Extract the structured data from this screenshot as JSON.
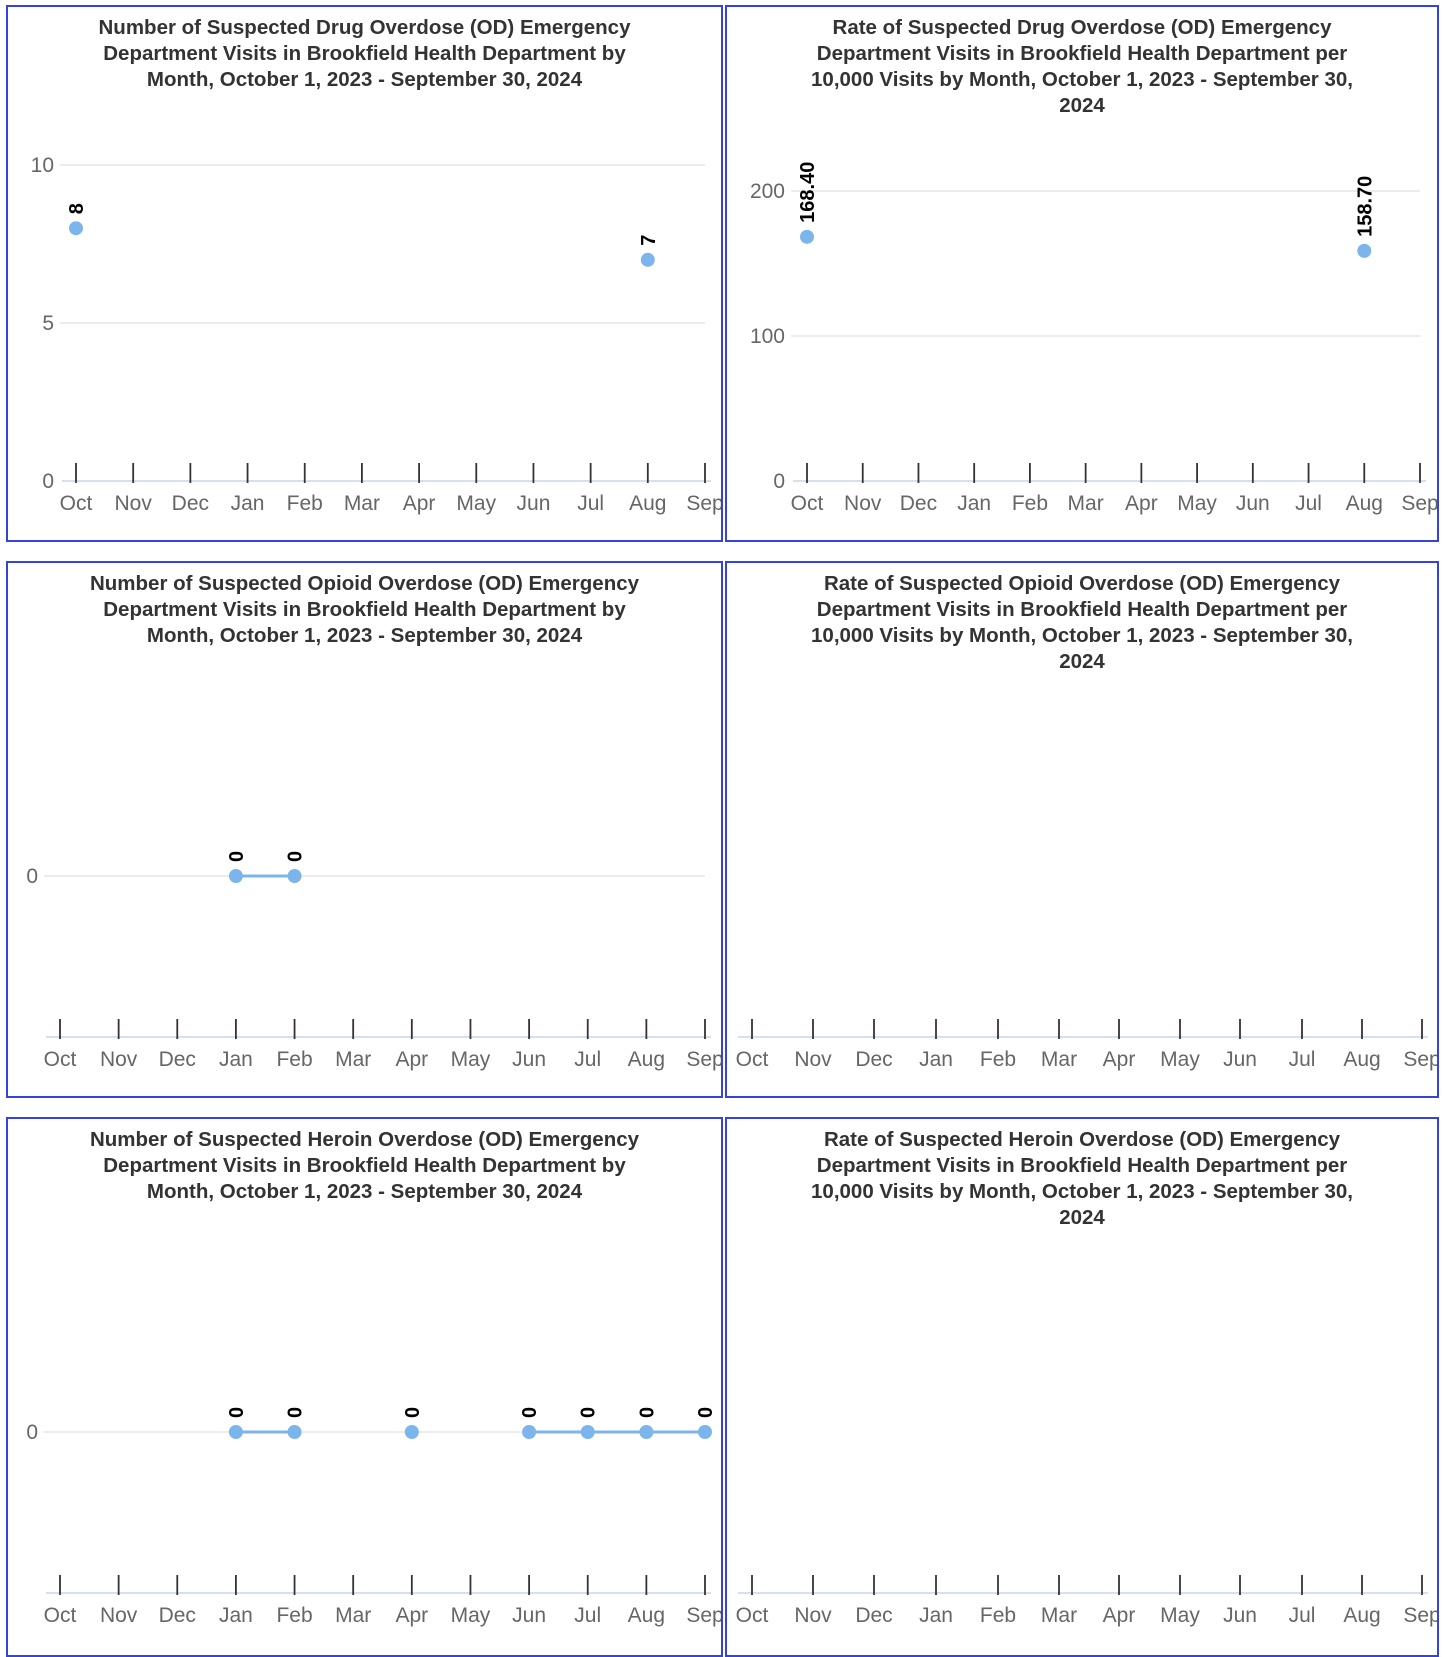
{
  "colors": {
    "series": "#7cb5ec",
    "border": "#3344dd",
    "grid": "#e6e6e6",
    "axis": "#666666"
  },
  "chart_data": [
    {
      "type": "line",
      "title": "Number of Suspected Drug Overdose (OD) Emergency Department Visits in Brookfield Health Department by Month, October 1, 2023 - September 30, 2024",
      "title_lines": [
        "Number of Suspected Drug Overdose (OD) Emergency",
        "Department Visits in Brookfield Health Department by",
        "Month, October 1, 2023 - September 30, 2024"
      ],
      "categories": [
        "Oct",
        "Nov",
        "Dec",
        "Jan",
        "Feb",
        "Mar",
        "Apr",
        "May",
        "Jun",
        "Jul",
        "Aug",
        "Sep"
      ],
      "values": [
        8,
        null,
        null,
        null,
        null,
        null,
        null,
        null,
        null,
        null,
        7,
        null
      ],
      "data_labels": [
        "8",
        "",
        "",
        "",
        "",
        "",
        "",
        "",
        "",
        "",
        "7",
        ""
      ],
      "ylim": [
        0,
        10
      ],
      "yticks": [
        0,
        5,
        10
      ],
      "grid": true,
      "xlabel": "",
      "ylabel": ""
    },
    {
      "type": "line",
      "title": "Rate of Suspected Drug Overdose (OD) Emergency Department Visits in Brookfield Health Department per 10,000 Visits by Month, October 1, 2023 - September 30, 2024",
      "title_lines": [
        "Rate of Suspected Drug Overdose (OD) Emergency",
        "Department Visits in Brookfield Health Department per",
        "10,000 Visits by Month, October 1, 2023 - September 30,",
        "2024"
      ],
      "categories": [
        "Oct",
        "Nov",
        "Dec",
        "Jan",
        "Feb",
        "Mar",
        "Apr",
        "May",
        "Jun",
        "Jul",
        "Aug",
        "Sep"
      ],
      "values": [
        168.4,
        null,
        null,
        null,
        null,
        null,
        null,
        null,
        null,
        null,
        158.7,
        null
      ],
      "data_labels": [
        "168.40",
        "",
        "",
        "",
        "",
        "",
        "",
        "",
        "",
        "",
        "158.70",
        ""
      ],
      "ylim": [
        0,
        200
      ],
      "yticks": [
        0,
        100,
        200
      ],
      "grid": true,
      "xlabel": "",
      "ylabel": ""
    },
    {
      "type": "line",
      "title": "Number of Suspected Opioid Overdose (OD) Emergency Department Visits in Brookfield Health Department by Month, October 1, 2023 - September 30, 2024",
      "title_lines": [
        "Number of Suspected Opioid Overdose (OD) Emergency",
        "Department Visits in Brookfield Health Department by",
        "Month, October 1, 2023 - September 30, 2024"
      ],
      "categories": [
        "Oct",
        "Nov",
        "Dec",
        "Jan",
        "Feb",
        "Mar",
        "Apr",
        "May",
        "Jun",
        "Jul",
        "Aug",
        "Sep"
      ],
      "values": [
        null,
        null,
        null,
        0,
        0,
        null,
        null,
        null,
        null,
        null,
        null,
        null
      ],
      "data_labels": [
        "",
        "",
        "",
        "0",
        "0",
        "",
        "",
        "",
        "",
        "",
        "",
        ""
      ],
      "yticks": [
        0
      ],
      "grid": true,
      "xlabel": "",
      "ylabel": ""
    },
    {
      "type": "line",
      "title": "Rate of Suspected Opioid Overdose (OD) Emergency Department Visits in Brookfield Health Department per 10,000 Visits by Month, October 1, 2023 - September 30, 2024",
      "title_lines": [
        "Rate of Suspected Opioid Overdose (OD) Emergency",
        "Department Visits in Brookfield Health Department per",
        "10,000 Visits by Month, October 1, 2023 - September 30,",
        "2024"
      ],
      "categories": [
        "Oct",
        "Nov",
        "Dec",
        "Jan",
        "Feb",
        "Mar",
        "Apr",
        "May",
        "Jun",
        "Jul",
        "Aug",
        "Sep"
      ],
      "values": [
        null,
        null,
        null,
        null,
        null,
        null,
        null,
        null,
        null,
        null,
        null,
        null
      ],
      "data_labels": [
        "",
        "",
        "",
        "",
        "",
        "",
        "",
        "",
        "",
        "",
        "",
        ""
      ],
      "yticks": [],
      "grid": false,
      "xlabel": "",
      "ylabel": ""
    },
    {
      "type": "line",
      "title": "Number of Suspected Heroin Overdose (OD) Emergency Department Visits in Brookfield Health Department by Month, October 1, 2023 - September 30, 2024",
      "title_lines": [
        "Number of Suspected Heroin Overdose (OD) Emergency",
        "Department Visits in Brookfield Health Department by",
        "Month, October 1, 2023 - September 30, 2024"
      ],
      "categories": [
        "Oct",
        "Nov",
        "Dec",
        "Jan",
        "Feb",
        "Mar",
        "Apr",
        "May",
        "Jun",
        "Jul",
        "Aug",
        "Sep"
      ],
      "values": [
        null,
        null,
        null,
        0,
        0,
        null,
        0,
        null,
        0,
        0,
        0,
        0
      ],
      "data_labels": [
        "",
        "",
        "",
        "0",
        "0",
        "",
        "0",
        "",
        "0",
        "0",
        "0",
        "0"
      ],
      "yticks": [
        0
      ],
      "grid": true,
      "xlabel": "",
      "ylabel": ""
    },
    {
      "type": "line",
      "title": "Rate of Suspected Heroin Overdose (OD) Emergency Department Visits in Brookfield Health Department per 10,000 Visits by Month, October 1, 2023 - September 30, 2024",
      "title_lines": [
        "Rate of Suspected Heroin Overdose (OD) Emergency",
        "Department Visits in Brookfield Health Department per",
        "10,000 Visits by Month, October 1, 2023 - September 30,",
        "2024"
      ],
      "categories": [
        "Oct",
        "Nov",
        "Dec",
        "Jan",
        "Feb",
        "Mar",
        "Apr",
        "May",
        "Jun",
        "Jul",
        "Aug",
        "Sep"
      ],
      "values": [
        null,
        null,
        null,
        null,
        null,
        null,
        null,
        null,
        null,
        null,
        null,
        null
      ],
      "data_labels": [
        "",
        "",
        "",
        "",
        "",
        "",
        "",
        "",
        "",
        "",
        "",
        ""
      ],
      "yticks": [],
      "grid": false,
      "xlabel": "",
      "ylabel": ""
    }
  ]
}
